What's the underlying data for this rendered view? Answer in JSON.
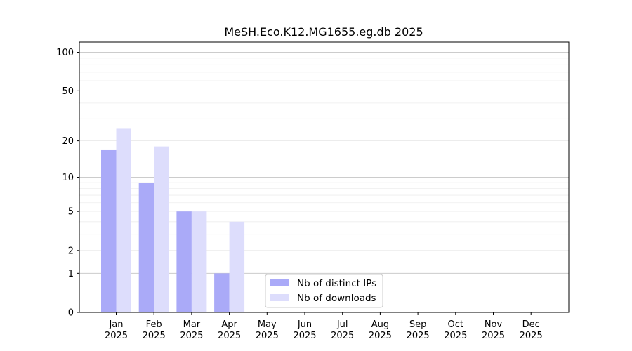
{
  "chart_data": {
    "type": "bar",
    "title": "MeSH.Eco.K12.MG1655.eg.db 2025",
    "xlabel": "",
    "ylabel": "",
    "yscale": "log(1+y)",
    "ylim": [
      0,
      120
    ],
    "yticks": [
      0,
      1,
      2,
      5,
      10,
      20,
      50,
      100
    ],
    "grid": true,
    "legend_position": "bottom-center",
    "categories": [
      {
        "month": "Jan",
        "year": "2025"
      },
      {
        "month": "Feb",
        "year": "2025"
      },
      {
        "month": "Mar",
        "year": "2025"
      },
      {
        "month": "Apr",
        "year": "2025"
      },
      {
        "month": "May",
        "year": "2025"
      },
      {
        "month": "Jun",
        "year": "2025"
      },
      {
        "month": "Jul",
        "year": "2025"
      },
      {
        "month": "Aug",
        "year": "2025"
      },
      {
        "month": "Sep",
        "year": "2025"
      },
      {
        "month": "Oct",
        "year": "2025"
      },
      {
        "month": "Nov",
        "year": "2025"
      },
      {
        "month": "Dec",
        "year": "2025"
      }
    ],
    "series": [
      {
        "name": "Nb of distinct IPs",
        "color": "#aaaaf8",
        "values": [
          17,
          9,
          5,
          1,
          0,
          0,
          0,
          0,
          0,
          0,
          0,
          0
        ]
      },
      {
        "name": "Nb of downloads",
        "color": "#ddddfc",
        "values": [
          25,
          18,
          5,
          4,
          0,
          0,
          0,
          0,
          0,
          0,
          0,
          0
        ]
      }
    ]
  }
}
